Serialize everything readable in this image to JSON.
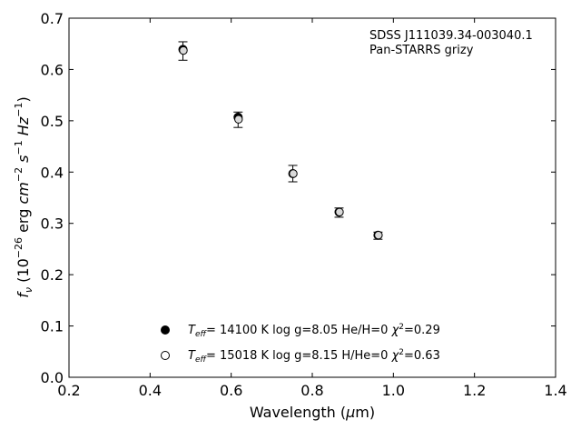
{
  "chart_data": {
    "type": "scatter",
    "xlim": [
      0.2,
      1.4
    ],
    "ylim": [
      0.0,
      0.7
    ],
    "x_ticks": [
      "0.2",
      "0.4",
      "0.6",
      "0.8",
      "1.0",
      "1.2",
      "1.4"
    ],
    "y_ticks": [
      "0.0",
      "0.1",
      "0.2",
      "0.3",
      "0.4",
      "0.5",
      "0.6",
      "0.7"
    ],
    "xlabel": {
      "main": "Wavelength (",
      "sym": "μ",
      "tail": "m)"
    },
    "ylabel": {
      "f": "f",
      "nu": "ν",
      "open": " (10",
      "e26": "−26",
      "erg": " erg ",
      "cm": "cm",
      "em2": "−2",
      "s": " s",
      "em1": "−1",
      "hz": " Hz",
      "em1b": "−1",
      "close": ")"
    },
    "annotation": [
      "SDSS J111039.34-003040.1",
      "Pan-STARRS grizy"
    ],
    "legend_placement": "lower-center",
    "observed": {
      "x": [
        0.481,
        0.617,
        0.752,
        0.866,
        0.962
      ],
      "y": [
        0.636,
        0.502,
        0.397,
        0.321,
        0.276
      ],
      "yerr": [
        0.018,
        0.015,
        0.016,
        0.009,
        0.007
      ]
    },
    "series": [
      {
        "marker": "filled",
        "x": [
          0.481,
          0.617,
          0.752,
          0.866,
          0.962
        ],
        "y": [
          0.639,
          0.507,
          0.397,
          0.322,
          0.277
        ],
        "legend": {
          "t": "T",
          "sub": "eff",
          "mid": "= 14100 K  log g=8.05  He/H=0  ",
          "chi": "χ",
          "sup": "2",
          "end": "=0.29"
        }
      },
      {
        "marker": "open",
        "x": [
          0.481,
          0.617,
          0.752,
          0.866,
          0.962
        ],
        "y": [
          0.637,
          0.503,
          0.397,
          0.322,
          0.277
        ],
        "legend": {
          "t": "T",
          "sub": "eff",
          "mid": "= 15018 K  log g=8.15  H/He=0  ",
          "chi": "χ",
          "sup": "2",
          "end": "=0.63"
        }
      }
    ]
  }
}
